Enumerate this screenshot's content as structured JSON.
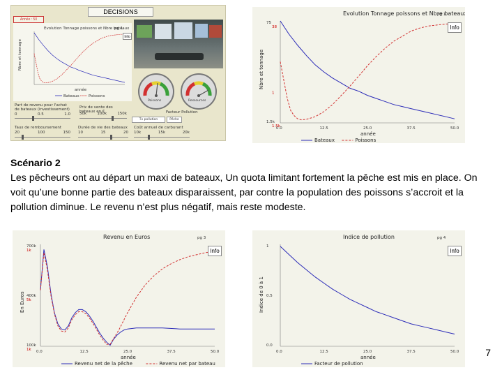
{
  "decisions_panel": {
    "title": "DECISIONS",
    "year_badge": "Année : 50",
    "mini_chart_title": "Evolution Tonnage poissons et Nbre bateaux",
    "mini_chart_page": "pg 1",
    "info_label": "Info",
    "mini_ylabel": "Nbre et tonnage",
    "mini_xlabel": "année",
    "mini_legend": [
      "Bateaux",
      "Poissons"
    ],
    "gauge_left_label": "Poissons",
    "gauge_right_label": "Ressources",
    "gauge_caption": "Facteur Pollution",
    "small_button_1": "Tx pollution",
    "small_button_2": "Pêche",
    "sliders": [
      {
        "label": "Part de revenu pour l'achat de bateaux (investissement)",
        "ticks": [
          "0",
          "0.5",
          "1.0"
        ]
      },
      {
        "label": "Prix de vente des bateaux en €",
        "ticks": [
          "50k",
          "100k",
          "150k"
        ]
      },
      {
        "label": "Taux de remboursement",
        "ticks": [
          "20",
          "100",
          "150"
        ]
      },
      {
        "label": "Durée de vie des bateaux",
        "ticks": [
          "10",
          "15",
          "20"
        ]
      },
      {
        "label": "Coût annuel de carburant",
        "ticks": [
          "10k",
          "15k",
          "20k"
        ]
      }
    ]
  },
  "paragraph": {
    "heading": "Scénario 2",
    "body": "Les pêcheurs ont au départ un maxi de bateaux, Un quota limitant fortement la pêche est mis en place. On voit qu’une bonne partie des bateaux disparaissent, par contre la population des poissons s’accroit et la pollution diminue. Le revenu n’est plus négatif, mais reste modeste."
  },
  "page_number": "7",
  "colors": {
    "blue": "#2b2bb8",
    "red": "#d23030",
    "panel_bg": "#f1f1e4",
    "decisions_bg": "#e9e6cc"
  },
  "chart_data": [
    {
      "type": "line",
      "title": "Evolution Tonnage poissons et Nbre bateaux",
      "page_label": "pg 1",
      "ylabel": "Nbre et tonnage",
      "xlabel": "année",
      "x_ticks": [
        "0.0",
        "12.5",
        "25.0",
        "37.5",
        "50.0"
      ],
      "y_ticks_left": [
        "75",
        "1.5k"
      ],
      "y_ticks_right": [
        "38",
        "",
        "1",
        "1.5k"
      ],
      "xlim": [
        0,
        50
      ],
      "series": [
        {
          "name": "Bateaux",
          "color": "blue",
          "style": "solid",
          "x": [
            0,
            2.5,
            5,
            7.5,
            10,
            12.5,
            15,
            17.5,
            20,
            22.5,
            25,
            27.5,
            30,
            32.5,
            35,
            37.5,
            40,
            42.5,
            45,
            47.5,
            50
          ],
          "y": [
            1.0,
            0.87,
            0.76,
            0.66,
            0.57,
            0.5,
            0.44,
            0.39,
            0.34,
            0.31,
            0.27,
            0.24,
            0.21,
            0.18,
            0.16,
            0.14,
            0.12,
            0.1,
            0.08,
            0.06,
            0.04
          ]
        },
        {
          "name": "Poissons",
          "color": "red",
          "style": "dashed",
          "x": [
            0,
            1,
            2,
            3,
            4,
            5,
            6,
            7.5,
            10,
            12.5,
            15,
            17.5,
            20,
            22.5,
            25,
            27.5,
            30,
            32.5,
            35,
            37.5,
            40,
            42.5,
            45,
            47.5,
            50
          ],
          "y": [
            0.6,
            0.42,
            0.24,
            0.12,
            0.07,
            0.04,
            0.03,
            0.035,
            0.06,
            0.11,
            0.18,
            0.27,
            0.36,
            0.46,
            0.56,
            0.65,
            0.73,
            0.8,
            0.85,
            0.9,
            0.93,
            0.95,
            0.96,
            0.97,
            0.97
          ]
        }
      ]
    },
    {
      "type": "line",
      "title": "Revenu en Euros",
      "page_label": "pg 3",
      "ylabel": "En Euros",
      "xlabel": "année",
      "x_ticks": [
        "0.0",
        "12.5",
        "25.0",
        "37.5",
        "50.0"
      ],
      "y_ticks_left": [
        "700k",
        "400k",
        "100k"
      ],
      "y_ticks_red": [
        "1k",
        "5k",
        "1k"
      ],
      "xlim": [
        0,
        50
      ],
      "series": [
        {
          "name": "Revenu net de la pêche",
          "color": "blue",
          "style": "solid",
          "x": [
            0,
            1,
            2,
            3,
            4,
            5,
            6,
            7,
            8,
            9,
            10,
            11,
            12,
            13,
            14,
            15,
            16,
            17,
            18,
            19,
            20,
            21,
            22,
            23,
            24,
            25,
            27.5,
            30,
            35,
            40,
            45,
            50
          ],
          "y": [
            0.55,
            0.95,
            0.78,
            0.52,
            0.33,
            0.22,
            0.17,
            0.16,
            0.2,
            0.28,
            0.33,
            0.36,
            0.36,
            0.34,
            0.3,
            0.25,
            0.19,
            0.13,
            0.08,
            0.04,
            0.01,
            0.07,
            0.11,
            0.14,
            0.16,
            0.17,
            0.18,
            0.18,
            0.18,
            0.17,
            0.17,
            0.17
          ]
        },
        {
          "name": "Revenu net par bateau",
          "color": "red",
          "style": "dashed",
          "x": [
            0,
            1,
            2,
            3,
            4,
            5,
            6,
            7,
            8,
            9,
            10,
            11,
            12,
            13,
            14,
            15,
            16,
            17,
            18,
            19,
            20,
            22.5,
            25,
            27.5,
            30,
            32.5,
            35,
            37.5,
            40,
            42.5,
            45,
            47.5,
            50
          ],
          "y": [
            0.55,
            0.92,
            0.75,
            0.5,
            0.32,
            0.2,
            0.15,
            0.14,
            0.18,
            0.26,
            0.31,
            0.34,
            0.34,
            0.32,
            0.28,
            0.23,
            0.17,
            0.11,
            0.06,
            0.02,
            0.02,
            0.16,
            0.33,
            0.48,
            0.6,
            0.69,
            0.76,
            0.81,
            0.85,
            0.88,
            0.9,
            0.92,
            0.93
          ]
        }
      ]
    },
    {
      "type": "line",
      "title": "Indice de pollution",
      "page_label": "pg 4",
      "ylabel": "Indice de 0 à 1",
      "xlabel": "année",
      "x_ticks": [
        "0.0",
        "12.5",
        "25.0",
        "37.5",
        "50.0"
      ],
      "y_ticks_left": [
        "1",
        "0.5",
        "0.0"
      ],
      "xlim": [
        0,
        50
      ],
      "ylim": [
        0,
        1
      ],
      "series": [
        {
          "name": "Facteur de pollution",
          "color": "blue",
          "style": "solid",
          "x": [
            0,
            2.5,
            5,
            7.5,
            10,
            12.5,
            15,
            17.5,
            20,
            22.5,
            25,
            27.5,
            30,
            32.5,
            35,
            37.5,
            40,
            42.5,
            45,
            47.5,
            50
          ],
          "y": [
            0.98,
            0.9,
            0.82,
            0.75,
            0.68,
            0.62,
            0.56,
            0.51,
            0.46,
            0.42,
            0.38,
            0.34,
            0.31,
            0.28,
            0.25,
            0.22,
            0.2,
            0.18,
            0.16,
            0.14,
            0.12
          ]
        }
      ]
    }
  ]
}
